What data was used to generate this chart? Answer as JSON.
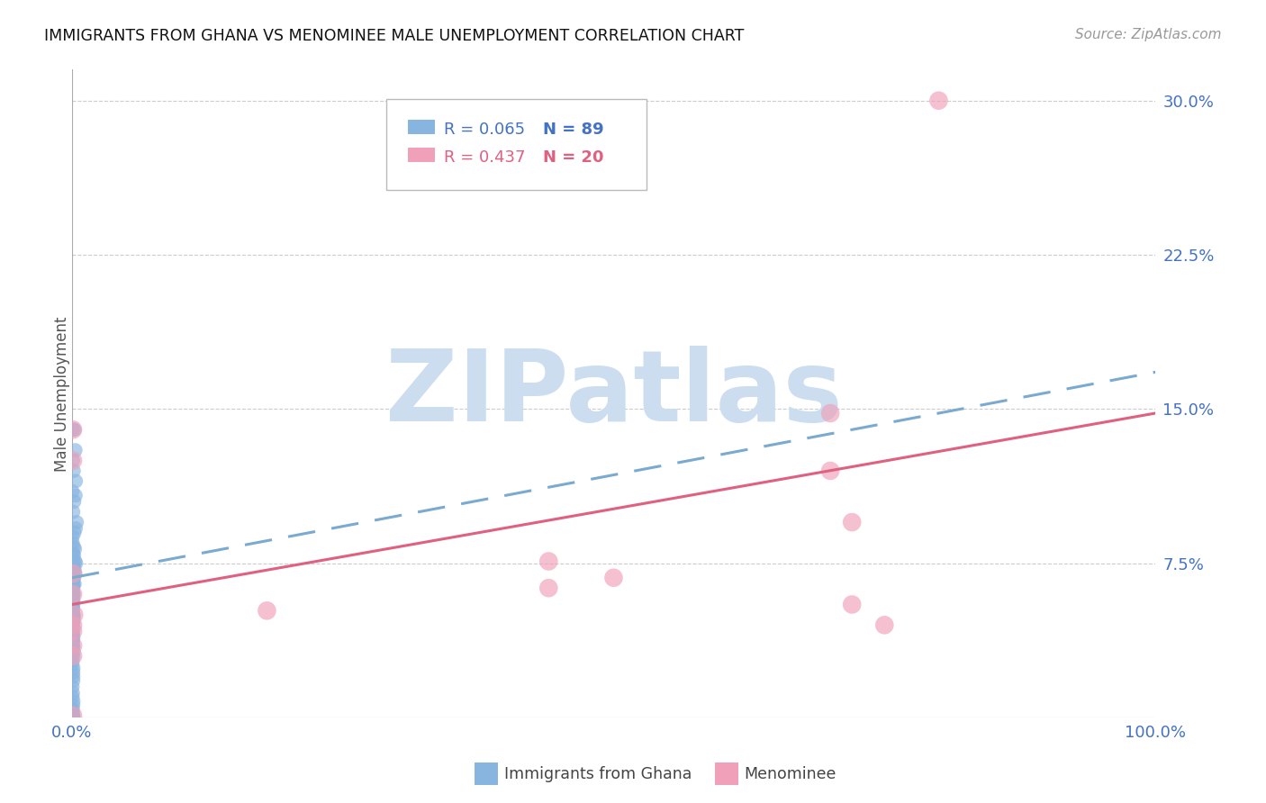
{
  "title": "IMMIGRANTS FROM GHANA VS MENOMINEE MALE UNEMPLOYMENT CORRELATION CHART",
  "source": "Source: ZipAtlas.com",
  "ylabel": "Male Unemployment",
  "xlim": [
    0.0,
    1.0
  ],
  "ylim": [
    0.0,
    0.315
  ],
  "yticks": [
    0.075,
    0.15,
    0.225,
    0.3
  ],
  "ytick_labels": [
    "7.5%",
    "15.0%",
    "22.5%",
    "30.0%"
  ],
  "xticks": [
    0.0,
    0.25,
    0.5,
    0.75,
    1.0
  ],
  "xtick_labels": [
    "0.0%",
    "",
    "",
    "",
    "100.0%"
  ],
  "legend_R1": "R = 0.065",
  "legend_N1": "N = 89",
  "legend_R2": "R = 0.437",
  "legend_N2": "N = 20",
  "legend_label1": "Immigrants from Ghana",
  "legend_label2": "Menominee",
  "watermark_text": "ZIPatlas",
  "watermark_color": "#ccddf0",
  "blue_scatter_color": "#88b4e0",
  "pink_scatter_color": "#f0a0b8",
  "blue_line_color": "#7aaad0",
  "pink_line_color": "#e06080",
  "blue_line_y0": 0.068,
  "blue_line_y1": 0.168,
  "pink_line_y0": 0.055,
  "pink_line_y1": 0.148,
  "grid_color": "#cccccc",
  "tick_color": "#4472c4",
  "ylabel_color": "#555555",
  "background": "#ffffff",
  "blue_x": [
    0.001,
    0.002,
    0.003,
    0.001,
    0.002,
    0.004,
    0.001,
    0.003,
    0.002,
    0.001,
    0.005,
    0.003,
    0.002,
    0.001,
    0.001,
    0.002,
    0.003,
    0.001,
    0.002,
    0.001,
    0.003,
    0.002,
    0.004,
    0.001,
    0.001,
    0.002,
    0.001,
    0.003,
    0.001,
    0.001,
    0.002,
    0.001,
    0.001,
    0.001,
    0.002,
    0.001,
    0.001,
    0.001,
    0.001,
    0.001,
    0.002,
    0.001,
    0.001,
    0.001,
    0.001,
    0.001,
    0.001,
    0.001,
    0.001,
    0.001,
    0.001,
    0.001,
    0.001,
    0.001,
    0.001,
    0.001,
    0.001,
    0.001,
    0.001,
    0.001,
    0.001,
    0.001,
    0.001,
    0.001,
    0.001,
    0.001,
    0.001,
    0.001,
    0.001,
    0.001,
    0.001,
    0.001,
    0.001,
    0.001,
    0.001,
    0.001,
    0.001,
    0.001,
    0.001,
    0.001,
    0.001,
    0.001,
    0.001,
    0.001,
    0.001,
    0.001,
    0.001,
    0.001,
    0.001
  ],
  "blue_y": [
    0.14,
    0.14,
    0.13,
    0.125,
    0.12,
    0.115,
    0.11,
    0.108,
    0.105,
    0.1,
    0.095,
    0.092,
    0.09,
    0.088,
    0.085,
    0.083,
    0.082,
    0.08,
    0.079,
    0.078,
    0.076,
    0.075,
    0.075,
    0.074,
    0.073,
    0.072,
    0.071,
    0.07,
    0.07,
    0.069,
    0.068,
    0.067,
    0.066,
    0.065,
    0.065,
    0.064,
    0.063,
    0.062,
    0.061,
    0.06,
    0.06,
    0.059,
    0.058,
    0.057,
    0.056,
    0.055,
    0.054,
    0.053,
    0.052,
    0.051,
    0.05,
    0.05,
    0.049,
    0.048,
    0.047,
    0.046,
    0.045,
    0.044,
    0.043,
    0.042,
    0.041,
    0.04,
    0.039,
    0.038,
    0.037,
    0.036,
    0.035,
    0.034,
    0.033,
    0.032,
    0.03,
    0.028,
    0.026,
    0.024,
    0.022,
    0.02,
    0.018,
    0.015,
    0.012,
    0.01,
    0.008,
    0.006,
    0.004,
    0.003,
    0.002,
    0.001,
    0.001,
    0.0,
    0.0
  ],
  "pink_x": [
    0.001,
    0.001,
    0.001,
    0.001,
    0.002,
    0.001,
    0.001,
    0.001,
    0.18,
    0.001,
    0.44,
    0.44,
    0.5,
    0.7,
    0.7,
    0.72,
    0.72,
    0.75,
    0.8,
    0.001
  ],
  "pink_y": [
    0.14,
    0.125,
    0.07,
    0.06,
    0.05,
    0.042,
    0.035,
    0.03,
    0.052,
    0.001,
    0.076,
    0.063,
    0.068,
    0.148,
    0.12,
    0.095,
    0.055,
    0.045,
    0.3,
    0.045
  ]
}
